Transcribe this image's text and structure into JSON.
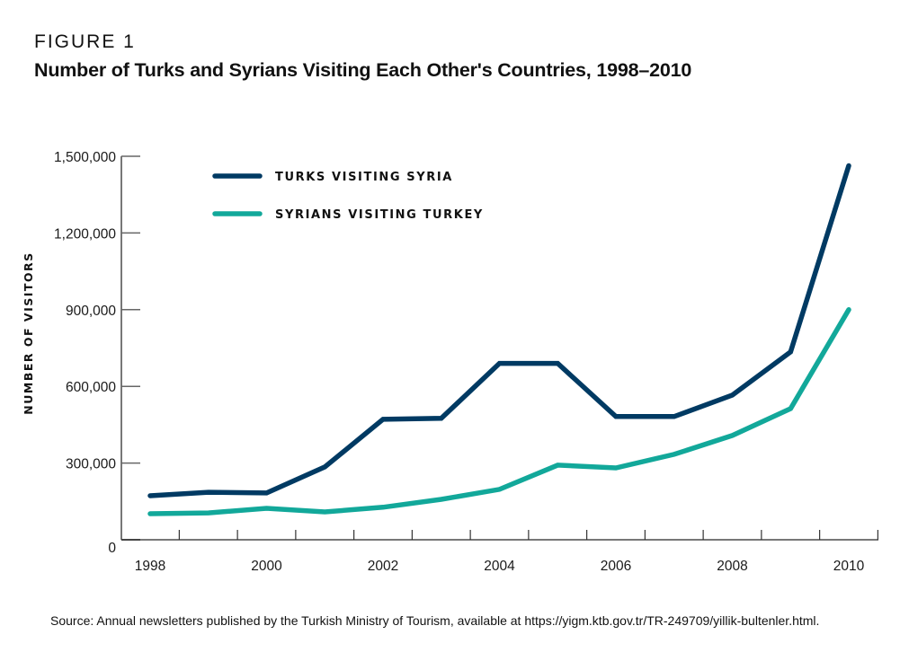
{
  "figure": {
    "label": "FIGURE 1",
    "title": "Number of Turks and Syrians Visiting Each Other's Countries, 1998–2010",
    "source": "Source: Annual newsletters published by the Turkish Ministry of Tourism, available at https://yigm.ktb.gov.tr/TR-249709/yillik-bultenler.html."
  },
  "chart_data": {
    "type": "line",
    "title": "Number of Turks and Syrians Visiting Each Other's Countries, 1998–2010",
    "xlabel": "",
    "ylabel": "NUMBER OF VISITORS",
    "x": [
      1998,
      1999,
      2000,
      2001,
      2002,
      2003,
      2004,
      2005,
      2006,
      2007,
      2008,
      2009,
      2010
    ],
    "x_tick_labels": [
      "1998",
      "2000",
      "2002",
      "2004",
      "2006",
      "2008",
      "2010"
    ],
    "x_tick_label_years": [
      1998,
      2000,
      2002,
      2004,
      2006,
      2008,
      2010
    ],
    "y_ticks": [
      0,
      300000,
      600000,
      900000,
      1200000,
      1500000
    ],
    "y_tick_labels": [
      "0",
      "300,000",
      "600,000",
      "900,000",
      "1,200,000",
      "1,500,000"
    ],
    "ylim": [
      0,
      1500000
    ],
    "grid": false,
    "legend_position": "top-left",
    "series": [
      {
        "name": "TURKS VISITING SYRIA",
        "color": "#003a63",
        "values": [
          172000,
          186000,
          183000,
          285000,
          471000,
          475000,
          690000,
          690000,
          482000,
          482000,
          566000,
          735000,
          1463000
        ]
      },
      {
        "name": "SYRIANS VISITING TURKEY",
        "color": "#12a89a",
        "values": [
          102000,
          105000,
          123000,
          109000,
          127000,
          158000,
          197000,
          292000,
          281000,
          334000,
          408000,
          513000,
          900000
        ]
      }
    ]
  }
}
